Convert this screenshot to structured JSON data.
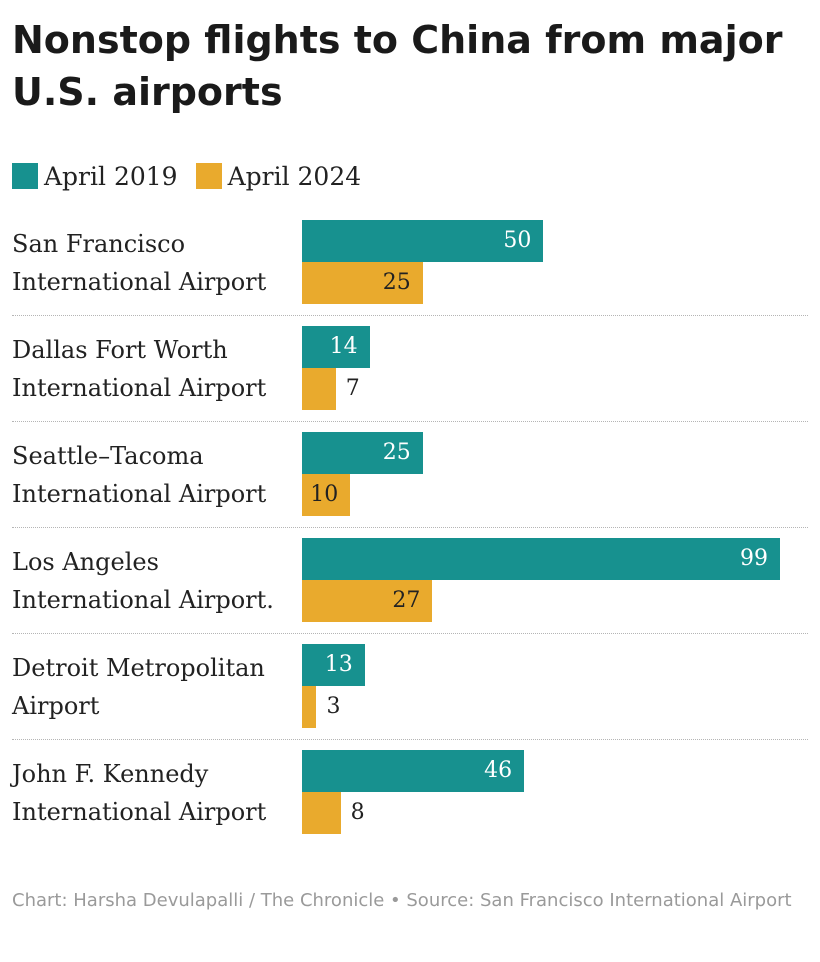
{
  "title": "Nonstop flights to China from major U.S. airports",
  "footer": "Chart: Harsha Devulapalli / The Chronicle • Source: San Francisco International Airport",
  "colors": {
    "april_2019": "#17918f",
    "april_2024": "#e9aa2d"
  },
  "chart_data": {
    "type": "bar",
    "orientation": "horizontal",
    "title": "Nonstop flights to China from major U.S. airports",
    "categories": [
      "San Francisco International Airport",
      "Dallas Fort Worth International Airport",
      "Seattle–Tacoma International Airport",
      "Los Angeles International Airport.",
      "Detroit Metropolitan Airport",
      "John F. Kennedy International Airport"
    ],
    "series": [
      {
        "name": "April 2019",
        "values": [
          50,
          14,
          25,
          99,
          13,
          46
        ]
      },
      {
        "name": "April 2024",
        "values": [
          25,
          7,
          10,
          27,
          3,
          8
        ]
      }
    ],
    "xlim": [
      0,
      99
    ],
    "legend": "top-left",
    "grid": false
  }
}
